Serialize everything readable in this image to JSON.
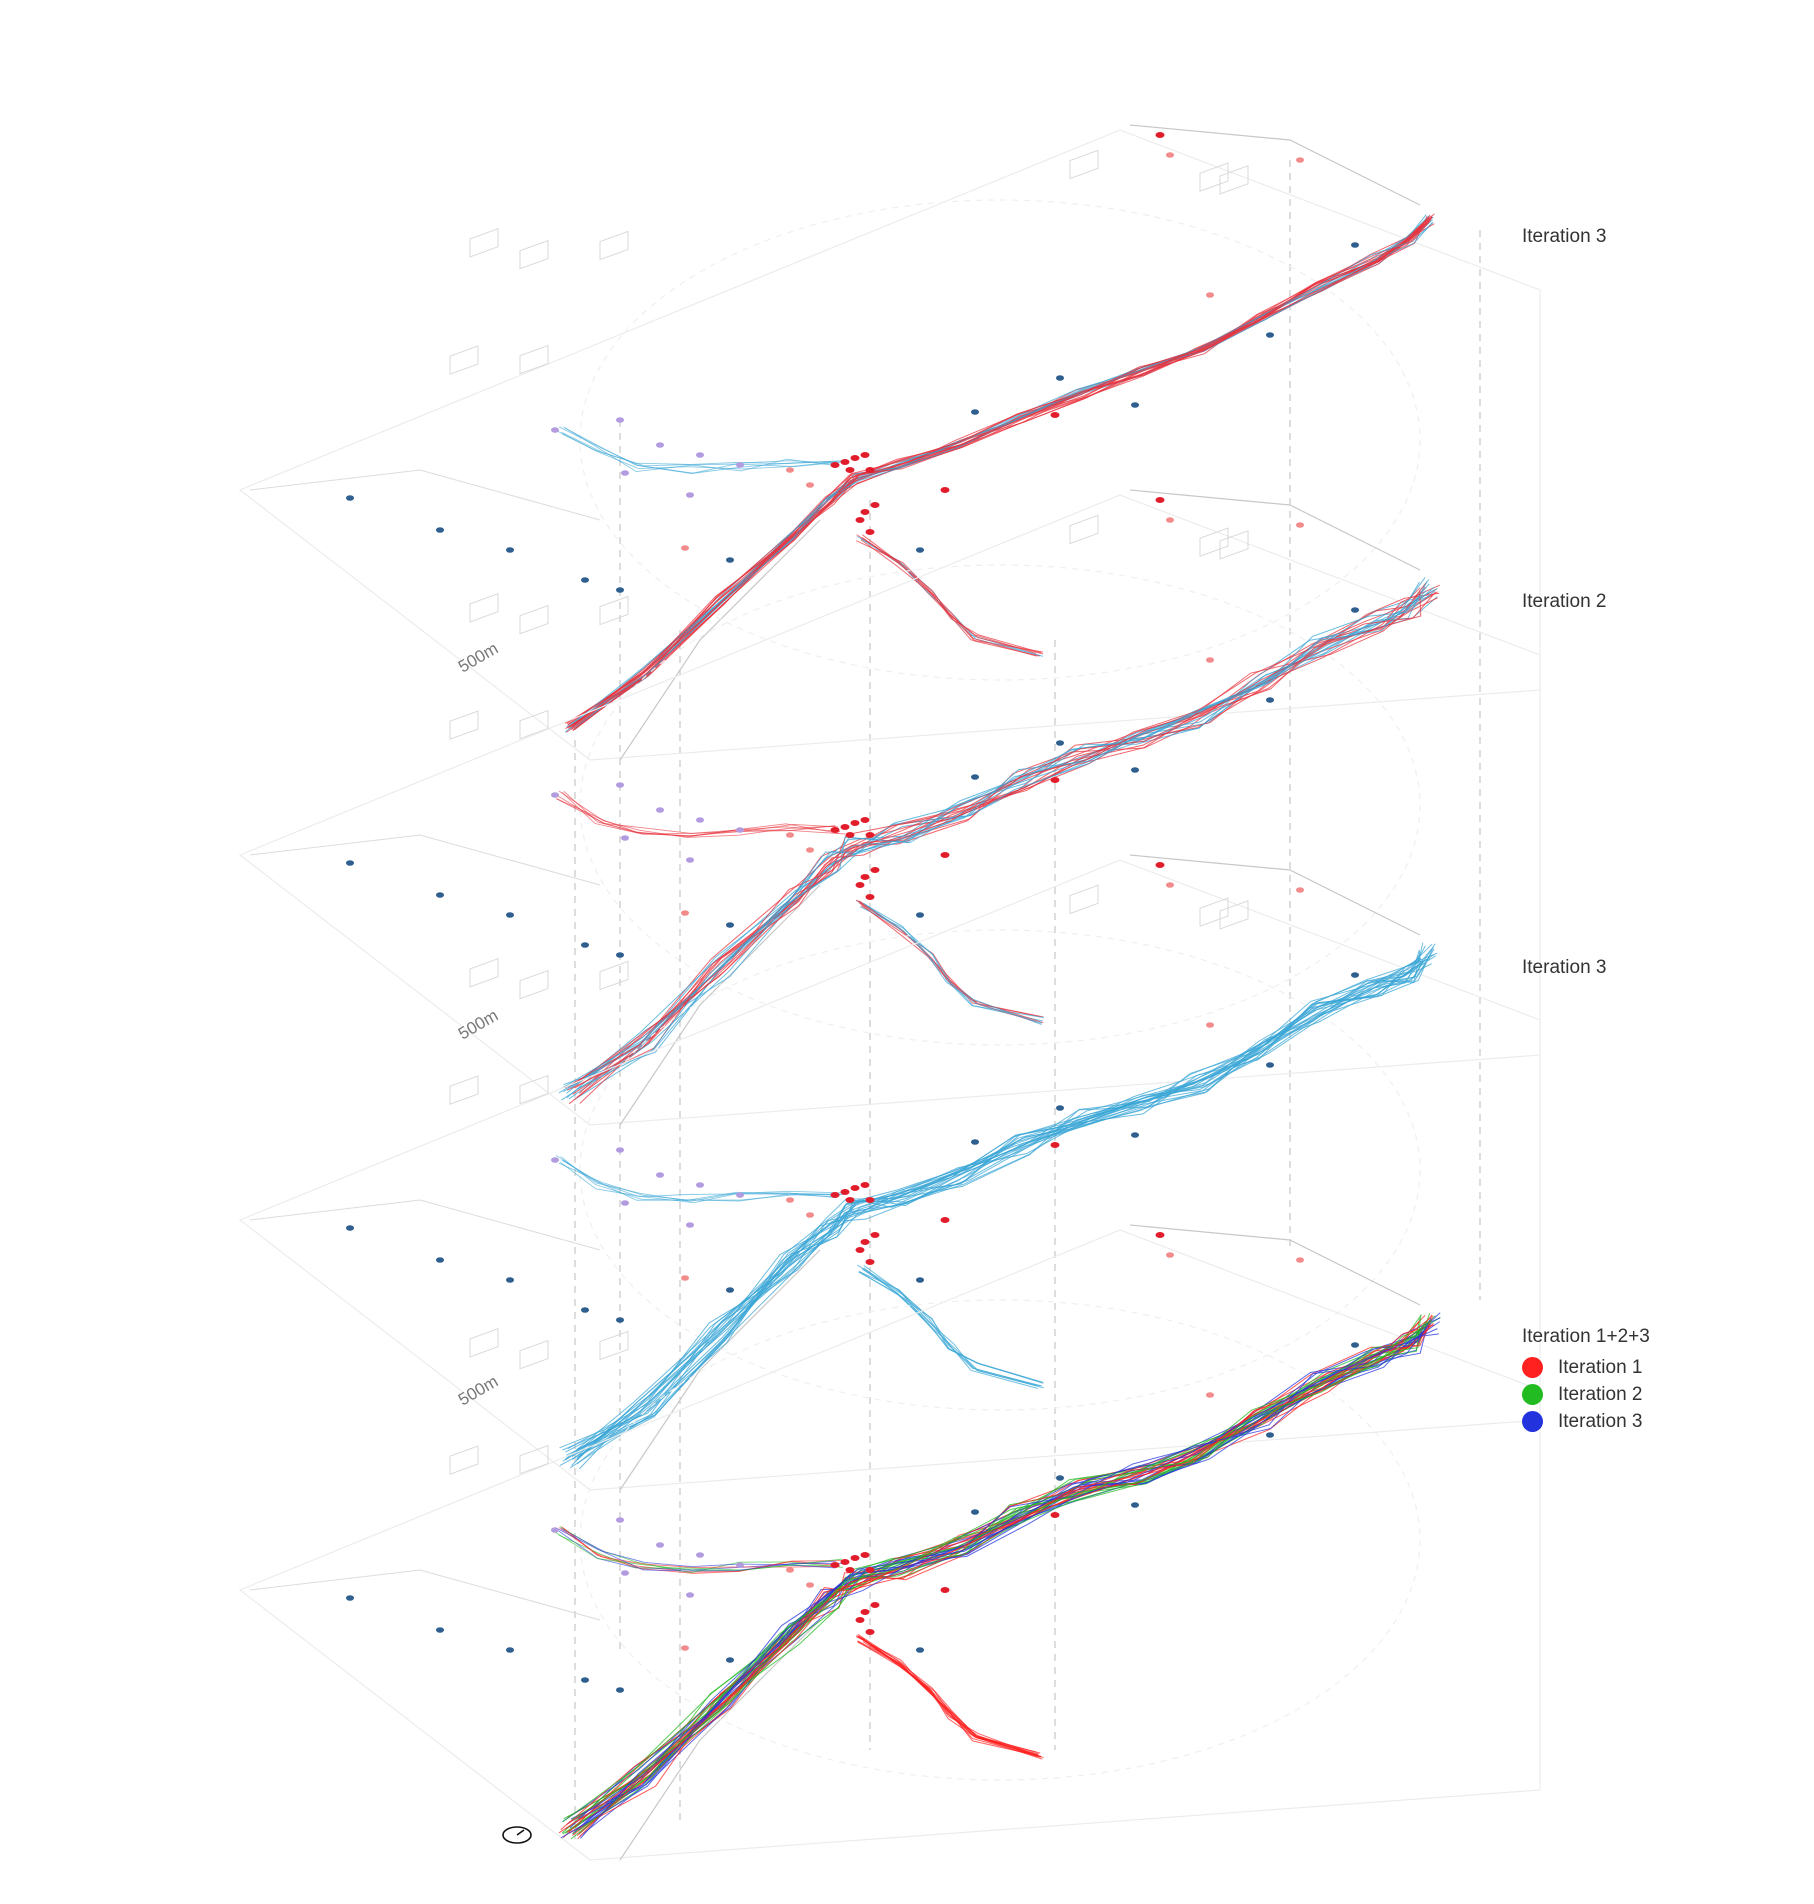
{
  "layers": [
    {
      "label": "Iteration 3",
      "scale": "500m"
    },
    {
      "label": "Iteration 2",
      "scale": "500m"
    },
    {
      "label": "Iteration 3",
      "scale": "500m"
    },
    {
      "label": "Iteration 1+2+3"
    }
  ],
  "legend": {
    "title": "Iteration 1+2+3",
    "items": [
      {
        "label": "Iteration 1",
        "color": "#ff2020"
      },
      {
        "label": "Iteration 2",
        "color": "#22bb22"
      },
      {
        "label": "Iteration 3",
        "color": "#2233dd"
      }
    ]
  },
  "colors": {
    "trace_red": "#e8323c",
    "trace_blue": "#3aa6d6",
    "marker_red": "#e21d2b",
    "marker_pink": "#f28c8c",
    "marker_navy": "#2f5f8f",
    "marker_lilac": "#b39be0",
    "context": "#c8c8c8"
  },
  "icons": [
    "compass-icon"
  ]
}
